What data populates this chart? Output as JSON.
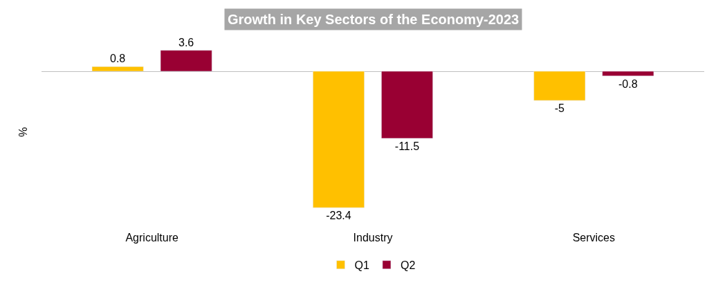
{
  "chart_data": {
    "type": "bar",
    "title": "Growth in Key Sectors of the Economy-2023",
    "ylabel": "%",
    "categories": [
      "Agriculture",
      "Industry",
      "Services"
    ],
    "series": [
      {
        "name": "Q1",
        "color": "#ffc000",
        "values": [
          0.8,
          -23.4,
          -5
        ]
      },
      {
        "name": "Q2",
        "color": "#990033",
        "values": [
          3.6,
          -11.5,
          -0.8
        ]
      }
    ],
    "data_labels": true,
    "legend": "bottom"
  }
}
